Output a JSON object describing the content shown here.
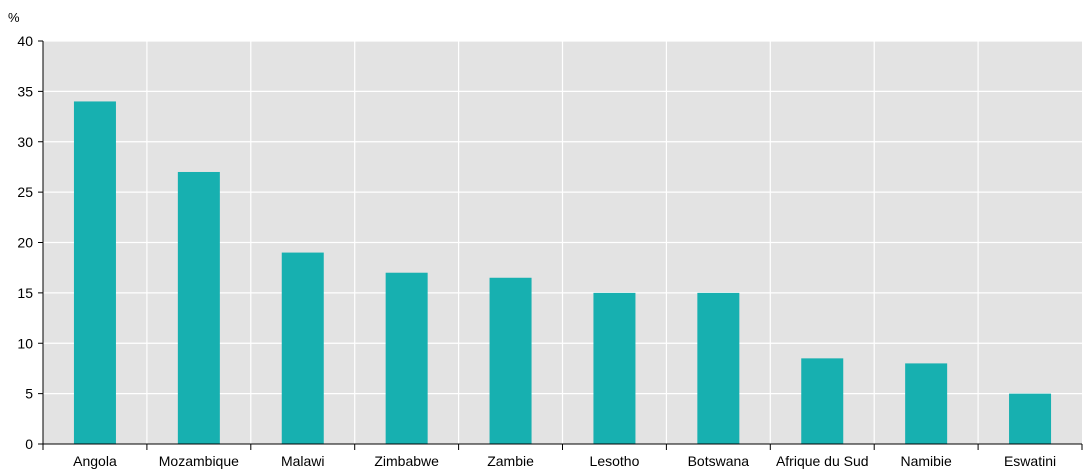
{
  "chart_data": {
    "type": "bar",
    "unit_label": "%",
    "categories": [
      "Angola",
      "Mozambique",
      "Malawi",
      "Zimbabwe",
      "Zambie",
      "Lesotho",
      "Botswana",
      "Afrique du Sud",
      "Namibie",
      "Eswatini"
    ],
    "values": [
      34,
      27,
      19,
      17,
      16.5,
      15,
      15,
      8.5,
      8,
      5
    ],
    "ylim": [
      0,
      40
    ],
    "yticks": [
      0,
      5,
      10,
      15,
      20,
      25,
      30,
      35,
      40
    ],
    "grid": true,
    "legend": "none",
    "colors": {
      "bar": "#17b0b0",
      "plot_background": "#e3e3e3",
      "gridline": "#ffffff",
      "axis": "#000000"
    }
  }
}
